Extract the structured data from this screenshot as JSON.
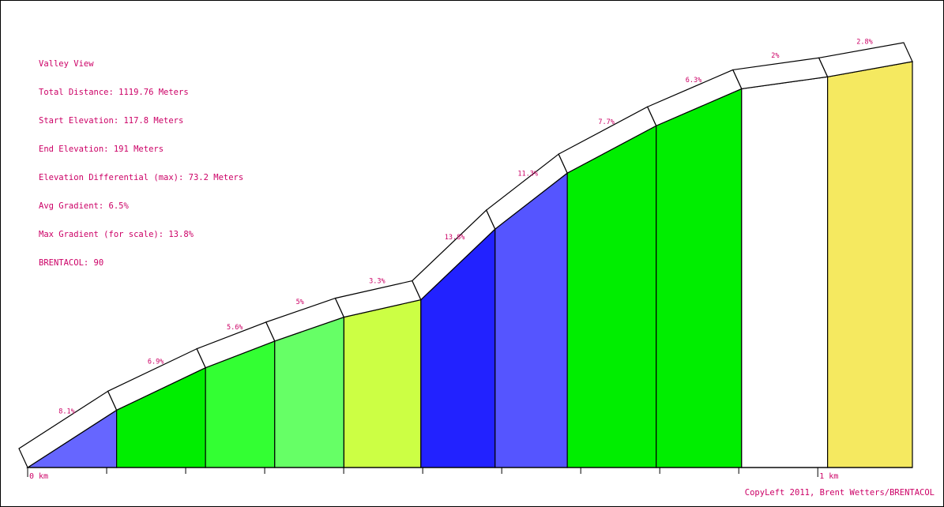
{
  "info": {
    "title": "Valley View",
    "total_distance": "Total Distance: 1119.76 Meters",
    "start_elevation": "Start Elevation: 117.8 Meters",
    "end_elevation": "End Elevation: 191 Meters",
    "elevation_diff": "Elevation Differential (max): 73.2 Meters",
    "avg_gradient": "Avg Gradient: 6.5%",
    "max_gradient": "Max Gradient (for scale): 13.8%",
    "brentacol": "BRENTACOL: 90"
  },
  "copyleft": "CopyLeft 2011, Brent Wetters/BRENTACOL",
  "chart_data": {
    "type": "area",
    "title": "Valley View",
    "x_unit": "km",
    "x_tick_labels": [
      {
        "x_km": 0,
        "label": "0 km"
      },
      {
        "x_km": 1,
        "label": "1 km"
      }
    ],
    "x_minor_ticks_km": [
      0.1,
      0.2,
      0.3,
      0.4,
      0.5,
      0.6,
      0.7,
      0.8,
      0.9
    ],
    "total_distance_m": 1119.76,
    "segments": [
      {
        "start_m": 0,
        "end_m": 112.6,
        "elev_start": 117.8,
        "elev_end": 126.9,
        "gradient_label": "8.1%",
        "color": "#6666ff"
      },
      {
        "start_m": 112.6,
        "end_m": 225.1,
        "elev_start": 126.9,
        "elev_end": 134.7,
        "gradient_label": "6.9%",
        "color": "#00ee00"
      },
      {
        "start_m": 225.1,
        "end_m": 312.7,
        "elev_start": 134.7,
        "elev_end": 139.6,
        "gradient_label": "5.6%",
        "color": "#33ff33"
      },
      {
        "start_m": 312.7,
        "end_m": 400.3,
        "elev_start": 139.6,
        "elev_end": 144.0,
        "gradient_label": "5%",
        "color": "#66ff66"
      },
      {
        "start_m": 400.3,
        "end_m": 497.7,
        "elev_start": 144.0,
        "elev_end": 147.2,
        "gradient_label": "3.3%",
        "color": "#ccff44"
      },
      {
        "start_m": 497.7,
        "end_m": 591.6,
        "elev_start": 147.2,
        "elev_end": 160.2,
        "gradient_label": "13.8%",
        "color": "#2222ff"
      },
      {
        "start_m": 591.6,
        "end_m": 683.0,
        "elev_start": 160.2,
        "elev_end": 170.5,
        "gradient_label": "11.3%",
        "color": "#5555ff"
      },
      {
        "start_m": 683.0,
        "end_m": 795.5,
        "elev_start": 170.5,
        "elev_end": 179.2,
        "gradient_label": "7.7%",
        "color": "#00ee00"
      },
      {
        "start_m": 795.5,
        "end_m": 903.6,
        "elev_start": 179.2,
        "elev_end": 186.0,
        "gradient_label": "6.3%",
        "color": "#00ee00"
      },
      {
        "start_m": 903.6,
        "end_m": 1012.4,
        "elev_start": 186.0,
        "elev_end": 188.2,
        "gradient_label": "2%",
        "color": "#ffffff"
      },
      {
        "start_m": 1012.4,
        "end_m": 1119.76,
        "elev_start": 188.2,
        "elev_end": 191.0,
        "gradient_label": "2.8%",
        "color": "#f5e960"
      }
    ]
  }
}
